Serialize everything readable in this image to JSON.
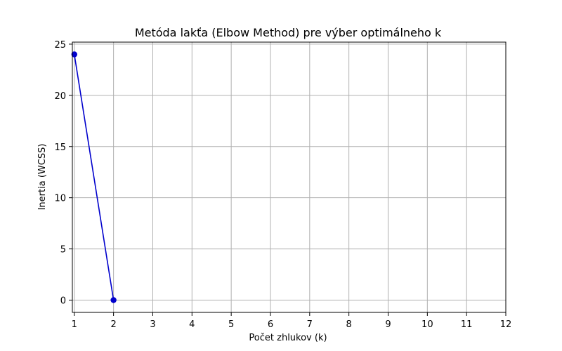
{
  "chart_data": {
    "type": "line",
    "title": "Metóda lakťa (Elbow Method) pre výber optimálneho k",
    "xlabel": "Počet zhlukov (k)",
    "ylabel": "Inertia (WCSS)",
    "xlim": [
      0.95,
      12
    ],
    "ylim": [
      -1.2,
      25.2
    ],
    "xticks": [
      1,
      2,
      3,
      4,
      5,
      6,
      7,
      8,
      9,
      10,
      11,
      12
    ],
    "yticks": [
      0,
      5,
      10,
      15,
      20,
      25
    ],
    "grid": true,
    "series": [
      {
        "color": "#0000cc",
        "marker": "circle",
        "x": [
          1,
          2
        ],
        "y": [
          24,
          0
        ]
      }
    ]
  }
}
